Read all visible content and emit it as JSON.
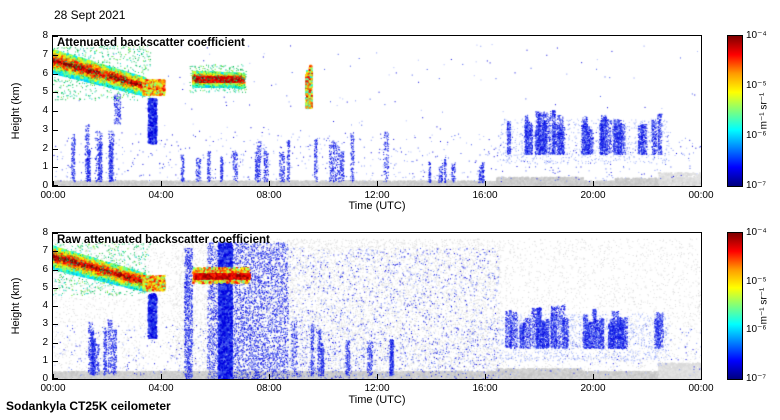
{
  "figure": {
    "date": "28 Sept 2021",
    "footer": "Sodankyla CT25K ceilometer",
    "panels": [
      {
        "title": "Attenuated backscatter coefficient",
        "xlabel": "Time (UTC)",
        "ylabel": "Height (km)",
        "xticks": [
          "00:00",
          "04:00",
          "08:00",
          "12:00",
          "16:00",
          "20:00",
          "00:00"
        ],
        "yticks": [
          "0",
          "1",
          "2",
          "3",
          "4",
          "5",
          "6",
          "7",
          "8"
        ]
      },
      {
        "title": "Raw attenuated backscatter coefficient",
        "xlabel": "Time (UTC)",
        "ylabel": "Height (km)",
        "xticks": [
          "00:00",
          "04:00",
          "08:00",
          "12:00",
          "16:00",
          "20:00",
          "00:00"
        ],
        "yticks": [
          "0",
          "1",
          "2",
          "3",
          "4",
          "5",
          "6",
          "7",
          "8"
        ]
      }
    ],
    "colorbar": {
      "ticks": [
        "10⁻⁴",
        "10⁻⁵",
        "10⁻⁶",
        "10⁻⁷"
      ],
      "label": "m⁻¹ sr⁻¹",
      "gradient": [
        "#7f0000",
        "#ff0000",
        "#ff9b00",
        "#ffff00",
        "#7dff7d",
        "#00ffff",
        "#0080ff",
        "#0000ff",
        "#00007f"
      ]
    }
  },
  "chart_data": {
    "type": "heatmap",
    "date": "28 Sept 2021",
    "instrument": "Sodankyla CT25K ceilometer",
    "x": {
      "label": "Time (UTC)",
      "range_hours": [
        0,
        24
      ],
      "ticks": [
        "00:00",
        "04:00",
        "08:00",
        "12:00",
        "16:00",
        "20:00",
        "00:00"
      ]
    },
    "y": {
      "label": "Height (km)",
      "range_km": [
        0,
        8
      ],
      "ticks": [
        0,
        1,
        2,
        3,
        4,
        5,
        6,
        7,
        8
      ]
    },
    "colorbar": {
      "label": "m⁻¹ sr⁻¹",
      "scale": "log",
      "range": [
        "1e-7",
        "1e-4"
      ],
      "ticks": [
        "1e-4",
        "1e-5",
        "1e-6",
        "1e-7"
      ],
      "colormap": "jet"
    },
    "panels": [
      {
        "title": "Attenuated backscatter coefficient",
        "features": [
          {
            "kind": "box",
            "desc": "surface echo band",
            "t0": 0,
            "t1": 24,
            "h0": 0.02,
            "h1": 0.3,
            "n": 6500,
            "size": 2,
            "palette": "gray"
          },
          {
            "kind": "box",
            "desc": "thicker surface echo 16:30-19:30",
            "t0": 16.4,
            "t1": 19.6,
            "h0": 0.03,
            "h1": 0.5,
            "n": 900,
            "size": 2,
            "palette": "gray"
          },
          {
            "kind": "box",
            "t0": 20.8,
            "t1": 23.9,
            "h0": 0.03,
            "h1": 0.45,
            "n": 700,
            "size": 2,
            "palette": "gray"
          },
          {
            "kind": "box",
            "t0": 22.4,
            "t1": 24,
            "h0": 0.05,
            "h1": 0.75,
            "n": 350,
            "size": 2,
            "palette": "lightgray"
          },
          {
            "kind": "box",
            "desc": "sparse low-level noise",
            "t0": 0,
            "t1": 24,
            "h0": 0.25,
            "h1": 2.9,
            "n": 650,
            "size": 1,
            "palette": "bluemix"
          },
          {
            "kind": "box",
            "t0": 0,
            "t1": 24,
            "h0": 2.9,
            "h1": 7.6,
            "n": 130,
            "size": 1,
            "palette": "bluemix"
          },
          {
            "kind": "columns",
            "desc": "boundary-layer plumes 01-02 UTC up to 3 km",
            "t0": 0.7,
            "t1": 2.3,
            "h0": 0.25,
            "h1": 3.3,
            "count": 7,
            "n": 150,
            "size": 1,
            "palette": "blue",
            "wMin": 0.05,
            "wMax": 0.14
          },
          {
            "kind": "box",
            "t0": 2.25,
            "t1": 2.5,
            "h0": 3.3,
            "h1": 5.0,
            "n": 140,
            "size": 1,
            "palette": "blue"
          },
          {
            "kind": "box",
            "desc": "plume ~03:30 at 2.3-4.7 km",
            "t0": 3.5,
            "t1": 3.8,
            "h0": 2.3,
            "h1": 4.7,
            "n": 420,
            "size": 2,
            "palette": "blue"
          },
          {
            "kind": "columns",
            "t0": 4.2,
            "t1": 7.6,
            "h0": 0.25,
            "h1": 2.4,
            "count": 6,
            "n": 90,
            "size": 1,
            "palette": "blue",
            "wMin": 0.04,
            "wMax": 0.1
          },
          {
            "kind": "columns",
            "t0": 7.6,
            "t1": 12.6,
            "h0": 0.25,
            "h1": 3.1,
            "count": 10,
            "n": 110,
            "size": 1,
            "palette": "blue",
            "wMin": 0.04,
            "wMax": 0.12
          },
          {
            "kind": "columns",
            "t0": 12.8,
            "t1": 16.3,
            "h0": 0.2,
            "h1": 1.6,
            "count": 6,
            "n": 60,
            "size": 1,
            "palette": "blue",
            "wMin": 0.03,
            "wMax": 0.08
          },
          {
            "kind": "slab",
            "desc": "descending aerosol/cloud layer 00-03:30 UTC from ~7 km to ~5 km",
            "t0": -0.1,
            "t1": 3.4,
            "hTop0": 7.35,
            "hTop1": 5.8,
            "hBot0": 6.1,
            "hBot1": 4.85,
            "n": 4200,
            "size": 2
          },
          {
            "kind": "box",
            "t0": 0,
            "t1": 3.6,
            "h0": 4.6,
            "h1": 7.5,
            "n": 650,
            "size": 1,
            "palette": "green"
          },
          {
            "kind": "box",
            "t0": 3.3,
            "t1": 4.1,
            "h0": 4.9,
            "h1": 5.7,
            "n": 450,
            "size": 2,
            "palette": "greenjet"
          },
          {
            "kind": "slab",
            "desc": "thin layer 05-07 UTC at 5.3-6.1 km",
            "t0": 5.15,
            "t1": 7.05,
            "hTop0": 6.15,
            "hTop1": 6.05,
            "hBot0": 5.35,
            "hBot1": 5.3,
            "n": 2000,
            "size": 2
          },
          {
            "kind": "box",
            "desc": "strong red core of 05-07 layer ~5.7 km",
            "t0": 5.25,
            "t1": 6.95,
            "h0": 5.6,
            "h1": 5.85,
            "n": 700,
            "size": 2,
            "palette": "hot"
          },
          {
            "kind": "box",
            "t0": 5.05,
            "t1": 7.15,
            "h0": 5.0,
            "h1": 6.5,
            "n": 300,
            "size": 1,
            "palette": "green"
          },
          {
            "kind": "columns",
            "desc": "virga streaks ~09:20-09:40 at 4.2-7.1 km",
            "t0": 9.2,
            "t1": 9.75,
            "h0": 4.2,
            "h1": 7.1,
            "count": 3,
            "n": 150,
            "size": 2,
            "palette": "jetmix",
            "wMin": 0.04,
            "wMax": 0.08
          },
          {
            "kind": "columns",
            "desc": "cloud field 17-19 UTC at 2-4 km",
            "t0": 16.8,
            "t1": 19.05,
            "h0": 1.7,
            "h1": 4.1,
            "count": 14,
            "n": 200,
            "size": 1,
            "palette": "blue",
            "wMin": 0.05,
            "wMax": 0.16
          },
          {
            "kind": "columns",
            "desc": "cloud field 19:30-22:30 UTC at 2-4 km",
            "t0": 19.5,
            "t1": 22.6,
            "h0": 1.7,
            "h1": 3.9,
            "count": 16,
            "n": 200,
            "size": 1,
            "palette": "blue",
            "wMin": 0.05,
            "wMax": 0.16
          },
          {
            "kind": "box",
            "t0": 16.5,
            "t1": 22.8,
            "h0": 1.2,
            "h1": 3.6,
            "n": 900,
            "size": 1,
            "palette": "lightblue"
          }
        ]
      },
      {
        "title": "Raw attenuated backscatter coefficient",
        "features": [
          {
            "kind": "box",
            "desc": "background speckle noise everywhere",
            "t0": 0,
            "t1": 24,
            "h0": 0,
            "h1": 7.7,
            "n": 7000,
            "size": 1,
            "palette": "lightgray"
          },
          {
            "kind": "box",
            "t0": 4.5,
            "t1": 16.6,
            "h0": 0,
            "h1": 7.7,
            "n": 6000,
            "size": 1,
            "palette": "lightgray"
          },
          {
            "kind": "box",
            "desc": "surface echo band",
            "t0": 0,
            "t1": 24,
            "h0": 0.02,
            "h1": 0.45,
            "n": 7000,
            "size": 2,
            "palette": "gray"
          },
          {
            "kind": "box",
            "t0": 16.4,
            "t1": 19.6,
            "h0": 0.03,
            "h1": 0.6,
            "n": 900,
            "size": 2,
            "palette": "gray"
          },
          {
            "kind": "box",
            "t0": 22.4,
            "t1": 24,
            "h0": 0.03,
            "h1": 0.9,
            "n": 900,
            "size": 2,
            "palette": "lightgray"
          },
          {
            "kind": "box",
            "t0": 0,
            "t1": 24,
            "h0": 0.2,
            "h1": 3,
            "n": 800,
            "size": 1,
            "palette": "bluemix"
          },
          {
            "kind": "columns",
            "t0": 0.7,
            "t1": 2.3,
            "h0": 0.25,
            "h1": 3.3,
            "count": 7,
            "n": 150,
            "size": 1,
            "palette": "blue",
            "wMin": 0.05,
            "wMax": 0.14
          },
          {
            "kind": "box",
            "t0": 3.5,
            "t1": 3.8,
            "h0": 2.3,
            "h1": 4.7,
            "n": 400,
            "size": 2,
            "palette": "blue"
          },
          {
            "kind": "box",
            "desc": "full-height noise column ~05:00",
            "t0": 4.85,
            "t1": 5.15,
            "h0": 0,
            "h1": 7.2,
            "n": 900,
            "size": 1,
            "palette": "blue"
          },
          {
            "kind": "box",
            "desc": "dense noise band 05:40-08:40 full height",
            "t0": 5.7,
            "t1": 8.7,
            "h0": 0,
            "h1": 7.5,
            "n": 4500,
            "size": 1,
            "palette": "blue"
          },
          {
            "kind": "box",
            "t0": 6.1,
            "t1": 6.6,
            "h0": 0,
            "h1": 7.5,
            "n": 2600,
            "size": 2,
            "palette": "blue"
          },
          {
            "kind": "box",
            "desc": "moderate noise 08:40-16:30",
            "t0": 8.7,
            "t1": 16.5,
            "h0": 0,
            "h1": 7.2,
            "n": 2000,
            "size": 1,
            "palette": "bluemix"
          },
          {
            "kind": "columns",
            "t0": 8.8,
            "t1": 12.6,
            "h0": 0.2,
            "h1": 3.4,
            "count": 8,
            "n": 140,
            "size": 1,
            "palette": "blue",
            "wMin": 0.05,
            "wMax": 0.12
          },
          {
            "kind": "slab",
            "desc": "descending aerosol/cloud layer 00-03:30 UTC",
            "t0": -0.1,
            "t1": 3.4,
            "hTop0": 7.35,
            "hTop1": 5.8,
            "hBot0": 6.1,
            "hBot1": 4.85,
            "n": 4200,
            "size": 2
          },
          {
            "kind": "box",
            "t0": 0,
            "t1": 3.6,
            "h0": 4.6,
            "h1": 7.5,
            "n": 600,
            "size": 1,
            "palette": "green"
          },
          {
            "kind": "box",
            "t0": 3.3,
            "t1": 4.1,
            "h0": 4.9,
            "h1": 5.7,
            "n": 420,
            "size": 2,
            "palette": "greenjet"
          },
          {
            "kind": "box",
            "desc": "layer 05-07:15 UTC at 5.3-6.1 km",
            "t0": 5.15,
            "t1": 7.25,
            "h0": 5.3,
            "h1": 6.15,
            "n": 900,
            "size": 2,
            "palette": "greenjet"
          },
          {
            "kind": "box",
            "desc": "strong red core line ~5.7 km",
            "t0": 5.2,
            "t1": 7.25,
            "h0": 5.55,
            "h1": 5.8,
            "n": 800,
            "size": 2,
            "palette": "hot"
          },
          {
            "kind": "columns",
            "desc": "cloud field 17-19 UTC at 2-4 km",
            "t0": 16.8,
            "t1": 19.05,
            "h0": 1.7,
            "h1": 4.1,
            "count": 14,
            "n": 220,
            "size": 1,
            "palette": "blue",
            "wMin": 0.05,
            "wMax": 0.16
          },
          {
            "kind": "columns",
            "desc": "cloud field 19:30-22:30 UTC",
            "t0": 19.5,
            "t1": 22.6,
            "h0": 1.7,
            "h1": 3.9,
            "count": 16,
            "n": 220,
            "size": 1,
            "palette": "blue",
            "wMin": 0.05,
            "wMax": 0.16
          },
          {
            "kind": "box",
            "t0": 16.5,
            "t1": 22.8,
            "h0": 1.0,
            "h1": 3.6,
            "n": 1200,
            "size": 1,
            "palette": "lightblue"
          }
        ]
      }
    ]
  }
}
